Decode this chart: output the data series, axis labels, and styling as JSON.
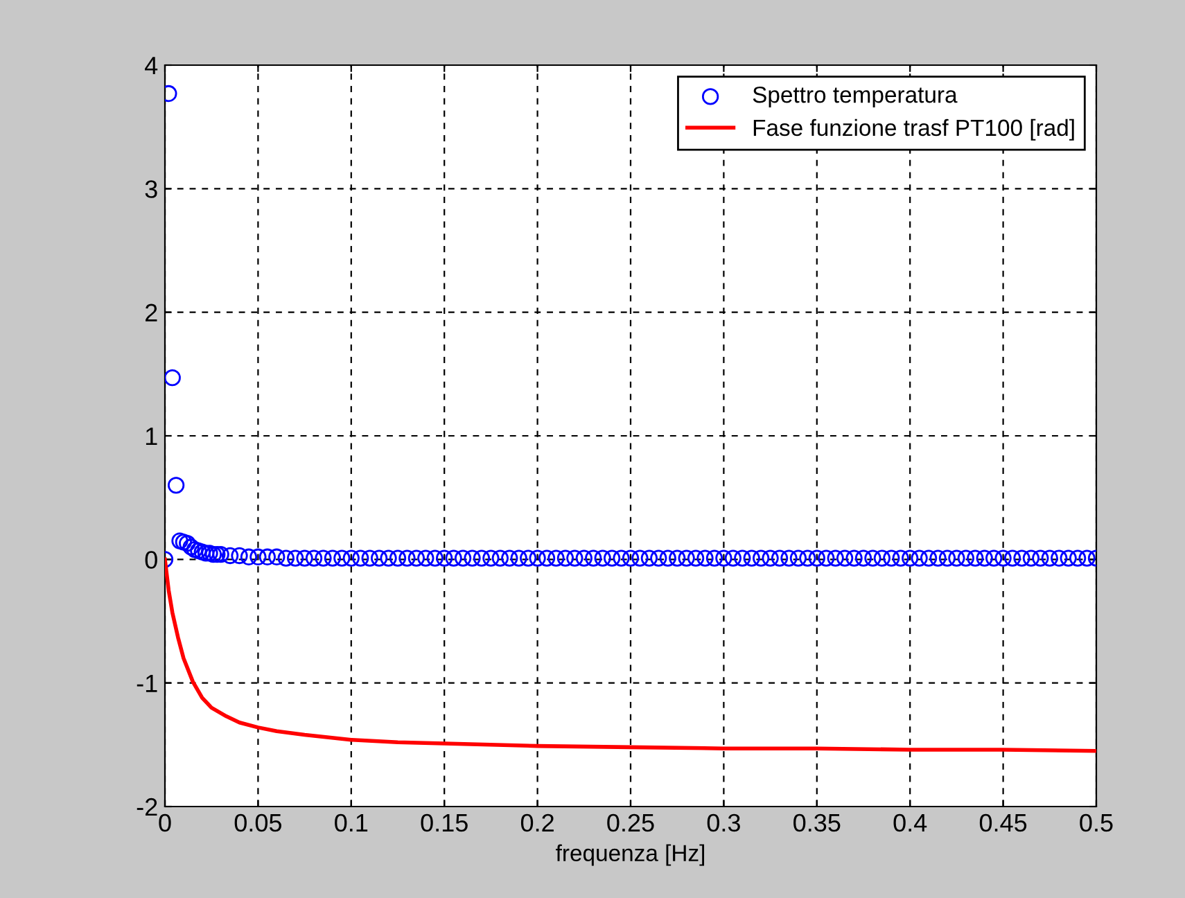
{
  "chart_data": {
    "type": "scatter",
    "xlabel": "frequenza [Hz]",
    "xlim": [
      0,
      0.5
    ],
    "ylim": [
      -2,
      4
    ],
    "xticks": [
      0,
      0.05,
      0.1,
      0.15,
      0.2,
      0.25,
      0.3,
      0.35,
      0.4,
      0.45,
      0.5
    ],
    "yticks": [
      -2,
      -1,
      0,
      1,
      2,
      3,
      4
    ],
    "grid": true,
    "legend": "top right",
    "series": [
      {
        "name": "Spettro temperatura",
        "marker": "circle",
        "color": "#0000ff",
        "x": [
          0,
          0.002,
          0.004,
          0.006,
          0.008,
          0.01,
          0.012,
          0.014,
          0.016,
          0.018,
          0.02,
          0.022,
          0.024,
          0.026,
          0.028,
          0.03,
          0.035,
          0.04,
          0.045,
          0.05,
          0.055,
          0.06,
          0.065,
          0.07,
          0.075,
          0.08,
          0.085,
          0.09,
          0.095,
          0.1,
          0.105,
          0.11,
          0.115,
          0.12,
          0.125,
          0.13,
          0.135,
          0.14,
          0.145,
          0.15,
          0.155,
          0.16,
          0.165,
          0.17,
          0.175,
          0.18,
          0.185,
          0.19,
          0.195,
          0.2,
          0.205,
          0.21,
          0.215,
          0.22,
          0.225,
          0.23,
          0.235,
          0.24,
          0.245,
          0.25,
          0.255,
          0.26,
          0.265,
          0.27,
          0.275,
          0.28,
          0.285,
          0.29,
          0.295,
          0.3,
          0.305,
          0.31,
          0.315,
          0.32,
          0.325,
          0.33,
          0.335,
          0.34,
          0.345,
          0.35,
          0.355,
          0.36,
          0.365,
          0.37,
          0.375,
          0.38,
          0.385,
          0.39,
          0.395,
          0.4,
          0.405,
          0.41,
          0.415,
          0.42,
          0.425,
          0.43,
          0.435,
          0.44,
          0.445,
          0.45,
          0.455,
          0.46,
          0.465,
          0.47,
          0.475,
          0.48,
          0.485,
          0.49,
          0.495,
          0.5
        ],
        "values": [
          0,
          3.77,
          1.47,
          0.6,
          0.15,
          0.14,
          0.13,
          0.1,
          0.08,
          0.07,
          0.06,
          0.05,
          0.05,
          0.04,
          0.04,
          0.04,
          0.03,
          0.03,
          0.02,
          0.02,
          0.02,
          0.02,
          0.01,
          0.01,
          0.01,
          0.01,
          0.01,
          0.01,
          0.01,
          0.01,
          0.01,
          0.01,
          0.01,
          0.01,
          0.01,
          0.01,
          0.01,
          0.01,
          0.01,
          0.01,
          0.01,
          0.01,
          0.01,
          0.01,
          0.01,
          0.01,
          0.01,
          0.01,
          0.01,
          0.01,
          0.01,
          0.01,
          0.01,
          0.01,
          0.01,
          0.01,
          0.01,
          0.01,
          0.01,
          0.01,
          0.01,
          0.01,
          0.01,
          0.01,
          0.01,
          0.01,
          0.01,
          0.01,
          0.01,
          0.01,
          0.01,
          0.01,
          0.01,
          0.01,
          0.01,
          0.01,
          0.01,
          0.01,
          0.01,
          0.01,
          0.01,
          0.01,
          0.01,
          0.01,
          0.01,
          0.01,
          0.01,
          0.01,
          0.01,
          0.01,
          0.01,
          0.01,
          0.01,
          0.01,
          0.01,
          0.01,
          0.01,
          0.01,
          0.01,
          0.01,
          0.01,
          0.01,
          0.01,
          0.01,
          0.01,
          0.01,
          0.01,
          0.01,
          0.01,
          0.01
        ]
      },
      {
        "name": "Fase funzione trasf PT100 [rad]",
        "type": "line",
        "color": "#ff0000",
        "line_style": "solid",
        "x": [
          0,
          0.002,
          0.004,
          0.007,
          0.01,
          0.015,
          0.02,
          0.025,
          0.033,
          0.04,
          0.05,
          0.06,
          0.075,
          0.1,
          0.125,
          0.15,
          0.2,
          0.25,
          0.3,
          0.35,
          0.4,
          0.45,
          0.5
        ],
        "values": [
          0,
          -0.25,
          -0.43,
          -0.63,
          -0.8,
          -0.99,
          -1.12,
          -1.2,
          -1.27,
          -1.32,
          -1.36,
          -1.39,
          -1.42,
          -1.46,
          -1.48,
          -1.49,
          -1.51,
          -1.52,
          -1.53,
          -1.53,
          -1.54,
          -1.54,
          -1.55
        ]
      }
    ]
  }
}
